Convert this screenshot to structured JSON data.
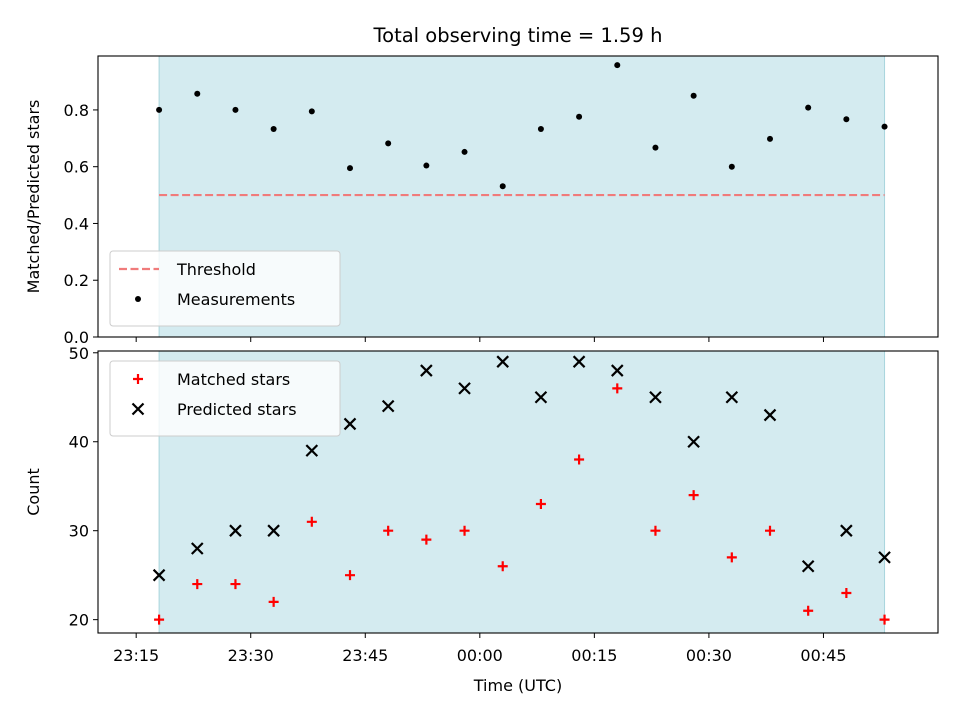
{
  "figure": {
    "title": "Total observing time = 1.59 h",
    "xlabel": "Time (UTC)"
  },
  "colors": {
    "span": "#d4ebf0",
    "threshold": "#f07b7b",
    "measurement": "#000000",
    "matched": "#ff0000",
    "predicted": "#000000"
  },
  "chart_data": [
    {
      "type": "scatter",
      "ylabel": "Matched/Predicted stars",
      "ylim": [
        0,
        0.99
      ],
      "xlim": [
        "23:10",
        "01:00"
      ],
      "yticks": [
        0.0,
        0.2,
        0.4,
        0.6,
        0.8
      ],
      "ytick_labels": [
        "0.0",
        "0.2",
        "0.4",
        "0.6",
        "0.8"
      ],
      "observing_span": [
        "23:18",
        "00:53"
      ],
      "threshold": {
        "name": "Threshold",
        "value": 0.5,
        "x_range": [
          "23:18",
          "00:53"
        ]
      },
      "legend_position": "lower-left",
      "series": [
        {
          "name": "Measurements",
          "marker": "dot",
          "points": [
            {
              "x": "23:18",
              "y": 0.8
            },
            {
              "x": "23:23",
              "y": 0.857
            },
            {
              "x": "23:28",
              "y": 0.8
            },
            {
              "x": "23:33",
              "y": 0.733
            },
            {
              "x": "23:38",
              "y": 0.795
            },
            {
              "x": "23:43",
              "y": 0.595
            },
            {
              "x": "23:48",
              "y": 0.682
            },
            {
              "x": "23:53",
              "y": 0.604
            },
            {
              "x": "23:58",
              "y": 0.652
            },
            {
              "x": "00:03",
              "y": 0.531
            },
            {
              "x": "00:08",
              "y": 0.733
            },
            {
              "x": "00:13",
              "y": 0.776
            },
            {
              "x": "00:18",
              "y": 0.958
            },
            {
              "x": "00:23",
              "y": 0.667
            },
            {
              "x": "00:28",
              "y": 0.85
            },
            {
              "x": "00:33",
              "y": 0.6
            },
            {
              "x": "00:38",
              "y": 0.698
            },
            {
              "x": "00:43",
              "y": 0.808
            },
            {
              "x": "00:48",
              "y": 0.767
            },
            {
              "x": "00:53",
              "y": 0.741
            }
          ]
        }
      ]
    },
    {
      "type": "scatter",
      "ylabel": "Count",
      "ylim": [
        18.5,
        50.2
      ],
      "xlim": [
        "23:10",
        "01:00"
      ],
      "yticks": [
        20,
        30,
        40,
        50
      ],
      "ytick_labels": [
        "20",
        "30",
        "40",
        "50"
      ],
      "xticks": [
        "23:15",
        "23:30",
        "23:45",
        "00:00",
        "00:15",
        "00:30",
        "00:45"
      ],
      "observing_span": [
        "23:18",
        "00:53"
      ],
      "legend_position": "top-left",
      "series": [
        {
          "name": "Matched stars",
          "marker": "plus",
          "points": [
            {
              "x": "23:18",
              "y": 20
            },
            {
              "x": "23:23",
              "y": 24
            },
            {
              "x": "23:28",
              "y": 24
            },
            {
              "x": "23:33",
              "y": 22
            },
            {
              "x": "23:38",
              "y": 31
            },
            {
              "x": "23:43",
              "y": 25
            },
            {
              "x": "23:48",
              "y": 30
            },
            {
              "x": "23:53",
              "y": 29
            },
            {
              "x": "23:58",
              "y": 30
            },
            {
              "x": "00:03",
              "y": 26
            },
            {
              "x": "00:08",
              "y": 33
            },
            {
              "x": "00:13",
              "y": 38
            },
            {
              "x": "00:18",
              "y": 46
            },
            {
              "x": "00:23",
              "y": 30
            },
            {
              "x": "00:28",
              "y": 34
            },
            {
              "x": "00:33",
              "y": 27
            },
            {
              "x": "00:38",
              "y": 30
            },
            {
              "x": "00:43",
              "y": 21
            },
            {
              "x": "00:48",
              "y": 23
            },
            {
              "x": "00:53",
              "y": 20
            }
          ]
        },
        {
          "name": "Predicted stars",
          "marker": "x",
          "points": [
            {
              "x": "23:18",
              "y": 25
            },
            {
              "x": "23:23",
              "y": 28
            },
            {
              "x": "23:28",
              "y": 30
            },
            {
              "x": "23:33",
              "y": 30
            },
            {
              "x": "23:38",
              "y": 39
            },
            {
              "x": "23:43",
              "y": 42
            },
            {
              "x": "23:48",
              "y": 44
            },
            {
              "x": "23:53",
              "y": 48
            },
            {
              "x": "23:58",
              "y": 46
            },
            {
              "x": "00:03",
              "y": 49
            },
            {
              "x": "00:08",
              "y": 45
            },
            {
              "x": "00:13",
              "y": 49
            },
            {
              "x": "00:18",
              "y": 48
            },
            {
              "x": "00:23",
              "y": 45
            },
            {
              "x": "00:28",
              "y": 40
            },
            {
              "x": "00:33",
              "y": 45
            },
            {
              "x": "00:38",
              "y": 43
            },
            {
              "x": "00:43",
              "y": 26
            },
            {
              "x": "00:48",
              "y": 30
            },
            {
              "x": "00:53",
              "y": 27
            }
          ]
        }
      ]
    }
  ]
}
